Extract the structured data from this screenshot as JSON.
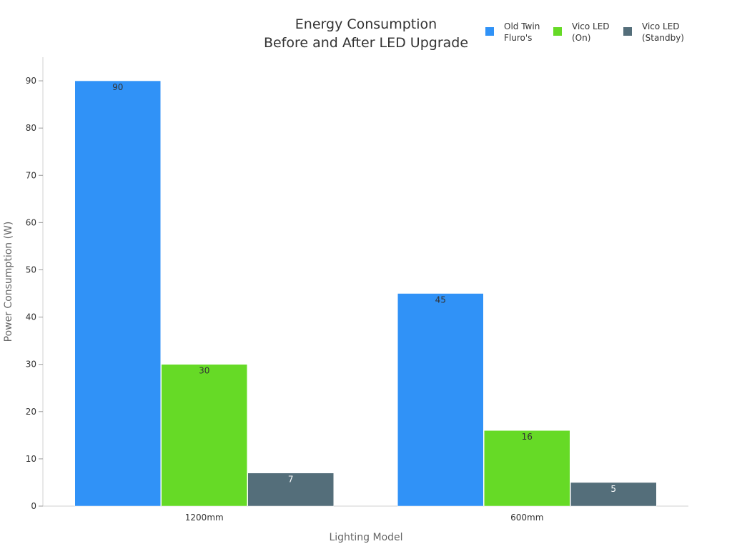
{
  "chart_data": {
    "type": "bar",
    "title_lines": [
      "Energy Consumption",
      "Before and After LED Upgrade"
    ],
    "xlabel": "Lighting Model",
    "ylabel": "Power Consumption (W)",
    "categories": [
      "1200mm",
      "600mm"
    ],
    "series": [
      {
        "name_lines": [
          "Old Twin",
          "Fluro's"
        ],
        "color": "#3092f7",
        "label_color": "#333333",
        "values": [
          90,
          45
        ]
      },
      {
        "name_lines": [
          "Vico LED",
          "(On)"
        ],
        "color": "#66da26",
        "label_color": "#333333",
        "values": [
          30,
          16
        ]
      },
      {
        "name_lines": [
          "Vico LED",
          "(Standby)"
        ],
        "color": "#546e7a",
        "label_color": "#ffffff",
        "values": [
          7,
          5
        ]
      }
    ],
    "ylim": [
      0,
      95
    ],
    "yticks": [
      0,
      10,
      20,
      30,
      40,
      50,
      60,
      70,
      80,
      90
    ],
    "grid": false,
    "legend": "top-right"
  }
}
